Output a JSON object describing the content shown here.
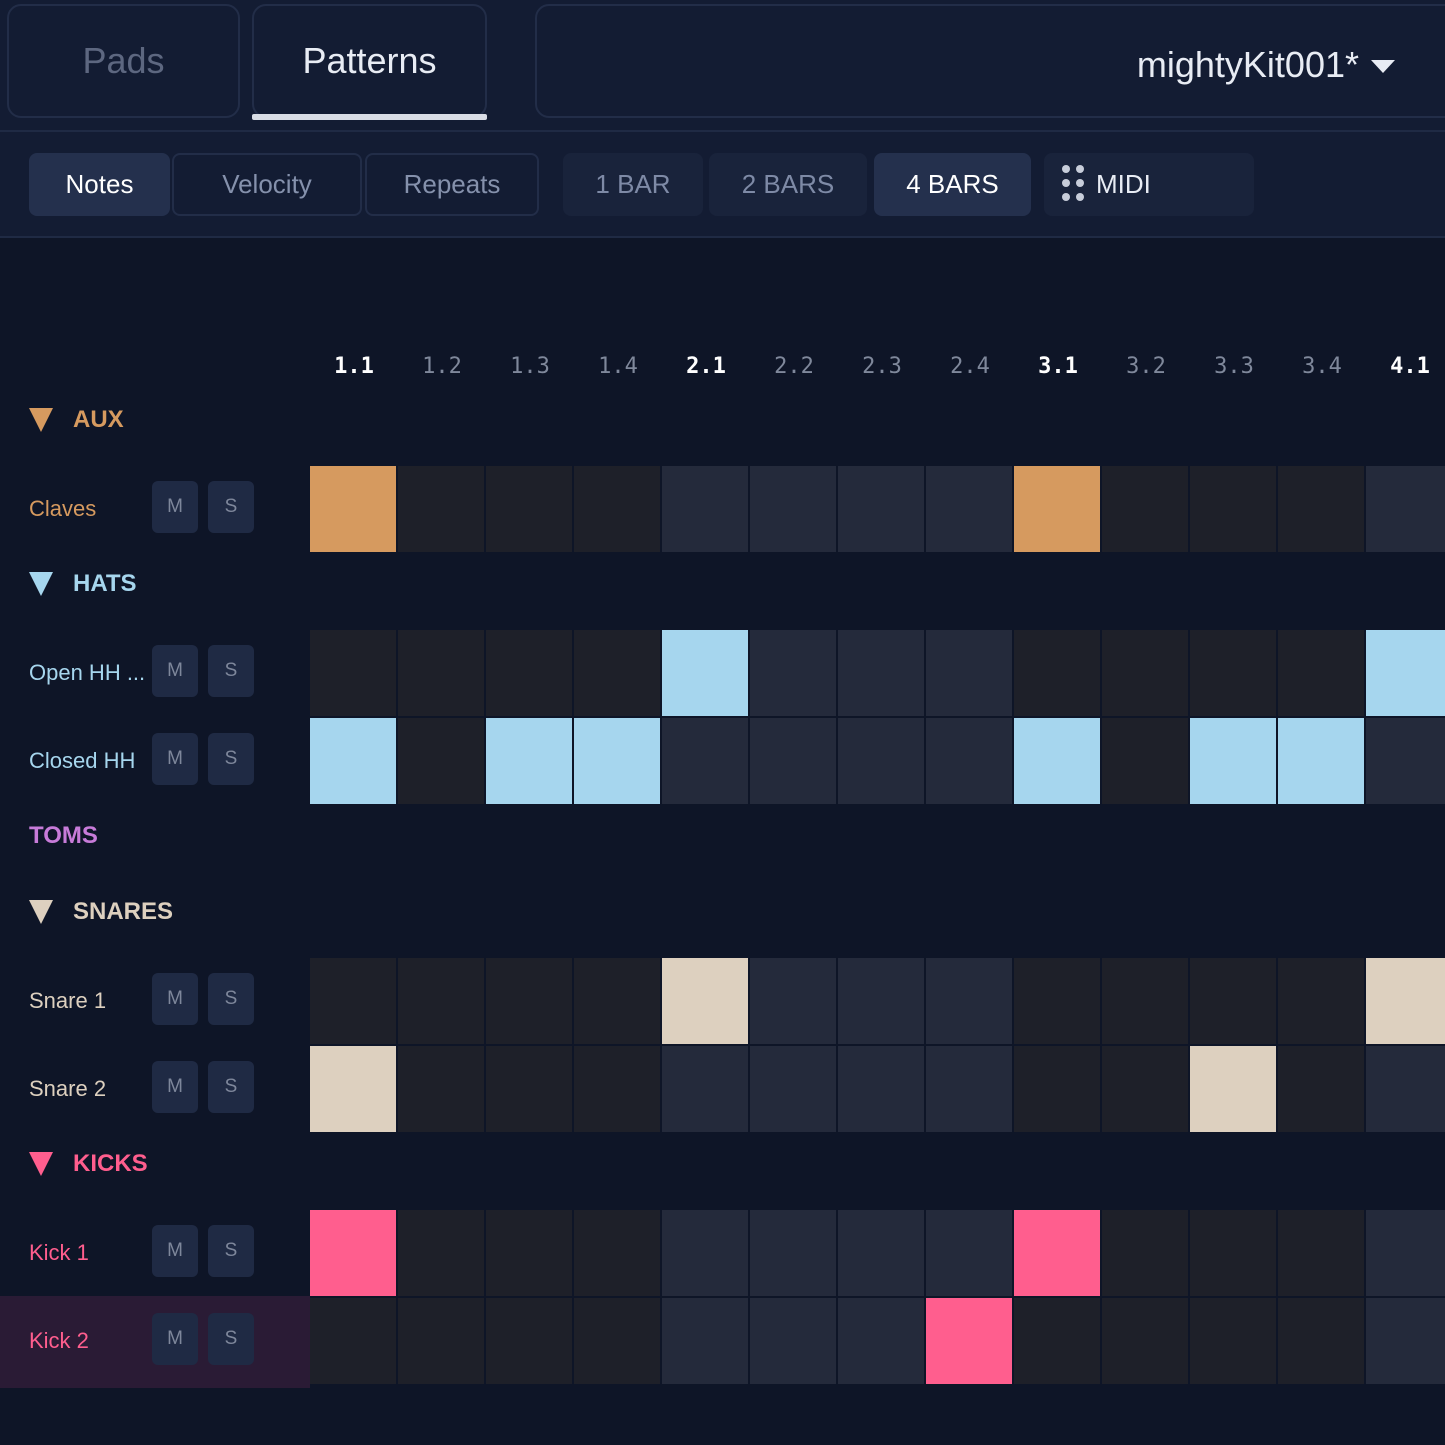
{
  "tabs": [
    {
      "label": "Pads",
      "active": false
    },
    {
      "label": "Patterns",
      "active": true
    }
  ],
  "kit": {
    "name": "mightyKit001*",
    "dropdown_icon": "chevron-down-icon"
  },
  "toolbar": {
    "modes": [
      {
        "label": "Notes",
        "active": true
      },
      {
        "label": "Velocity",
        "active": false
      },
      {
        "label": "Repeats",
        "active": false
      }
    ],
    "lengths": [
      {
        "label": "1 BAR",
        "active": false
      },
      {
        "label": "2 BARS",
        "active": false
      },
      {
        "label": "4 BARS",
        "active": true
      }
    ],
    "midi": {
      "label": "MIDI",
      "icon": "drag-handle-icon"
    }
  },
  "ruler": [
    "1.1",
    "1.2",
    "1.3",
    "1.4",
    "2.1",
    "2.2",
    "2.3",
    "2.4",
    "3.1",
    "3.2",
    "3.3",
    "3.4",
    "4.1"
  ],
  "colors": {
    "aux": "#d69a5f",
    "hats": "#a6d6ee",
    "toms": "#c77bd9",
    "snares": "#ddd0bf",
    "kicks": "#ff5e8e",
    "cell_dark": "#1e2029",
    "cell_light": "#242a3b"
  },
  "groups": [
    {
      "label": "AUX",
      "color": "#d69a5f",
      "collapsible": true,
      "tracks": [
        {
          "name": "Claves",
          "mute": "M",
          "solo": "S",
          "steps": [
            1,
            0,
            0,
            0,
            0,
            0,
            0,
            0,
            1,
            0,
            0,
            0,
            0
          ]
        }
      ]
    },
    {
      "label": "HATS",
      "color": "#a6d6ee",
      "collapsible": true,
      "tracks": [
        {
          "name": "Open HH ...",
          "mute": "M",
          "solo": "S",
          "steps": [
            0,
            0,
            0,
            0,
            1,
            0,
            0,
            0,
            0,
            0,
            0,
            0,
            1
          ]
        },
        {
          "name": "Closed HH",
          "mute": "M",
          "solo": "S",
          "steps": [
            1,
            0,
            1,
            1,
            0,
            0,
            0,
            0,
            1,
            0,
            1,
            1,
            0
          ]
        }
      ]
    },
    {
      "label": "TOMS",
      "color": "#c77bd9",
      "collapsible": false,
      "tracks": []
    },
    {
      "label": "SNARES",
      "color": "#ddd0bf",
      "collapsible": true,
      "tracks": [
        {
          "name": "Snare 1",
          "mute": "M",
          "solo": "S",
          "steps": [
            0,
            0,
            0,
            0,
            1,
            0,
            0,
            0,
            0,
            0,
            0,
            0,
            1
          ]
        },
        {
          "name": "Snare 2",
          "mute": "M",
          "solo": "S",
          "steps": [
            1,
            0,
            0,
            0,
            0,
            0,
            0,
            0,
            0,
            0,
            1,
            0,
            0
          ]
        }
      ]
    },
    {
      "label": "KICKS",
      "color": "#ff5e8e",
      "collapsible": true,
      "tracks": [
        {
          "name": "Kick 1",
          "mute": "M",
          "solo": "S",
          "steps": [
            1,
            0,
            0,
            0,
            0,
            0,
            0,
            0,
            1,
            0,
            0,
            0,
            0
          ]
        },
        {
          "name": "Kick 2",
          "mute": "M",
          "solo": "S",
          "steps": [
            0,
            0,
            0,
            0,
            0,
            0,
            0,
            1,
            0,
            0,
            0,
            0,
            0
          ]
        }
      ]
    }
  ]
}
